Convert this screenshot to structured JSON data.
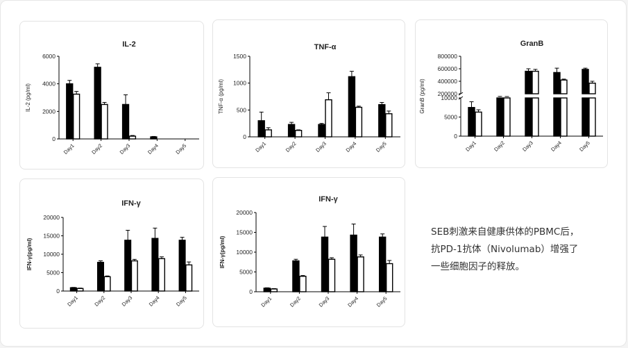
{
  "caption": {
    "lines": [
      "SEB刺激来自健康供体的PBMC后，",
      "抗PD-1抗体（Nivolumab）增强了",
      "一些细胞因子的释放。"
    ]
  },
  "colors": {
    "treated": "#000000",
    "control": "#ffffff",
    "outline": "#000000"
  },
  "chart_data": [
    {
      "type": "bar",
      "title": "IL-2",
      "ylabel": "IL-2 (pg/ml)",
      "categories": [
        "Day1",
        "Day2",
        "Day3",
        "Day4",
        "Day5"
      ],
      "ylim": [
        0,
        6000
      ],
      "yticks": [
        0,
        2000,
        4000,
        6000
      ],
      "series": [
        {
          "values": [
            4000,
            5200,
            2500,
            150,
            0
          ],
          "errors": [
            250,
            250,
            700,
            30,
            0
          ],
          "color": "#000000"
        },
        {
          "values": [
            3250,
            2500,
            200,
            0,
            0
          ],
          "errors": [
            200,
            150,
            50,
            0,
            0
          ],
          "color": "#ffffff"
        }
      ]
    },
    {
      "type": "bar",
      "title": "TNF-α",
      "ylabel": "TNF-α (pg/ml)",
      "categories": [
        "Day1",
        "Day2",
        "Day3",
        "Day4",
        "Day5"
      ],
      "ylim": [
        0,
        1500
      ],
      "yticks": [
        0,
        500,
        1000,
        1500
      ],
      "series": [
        {
          "values": [
            300,
            230,
            230,
            1120,
            600
          ],
          "errors": [
            160,
            40,
            20,
            100,
            40
          ],
          "color": "#000000"
        },
        {
          "values": [
            130,
            120,
            690,
            550,
            430
          ],
          "errors": [
            40,
            10,
            130,
            20,
            50
          ],
          "color": "#ffffff"
        }
      ]
    },
    {
      "type": "bar",
      "title": "GranB",
      "ylabel": "GranB (pg/ml)",
      "categories": [
        "Day1",
        "Day2",
        "Day3",
        "Day4",
        "Day5"
      ],
      "ybreak": {
        "lower": [
          0,
          10000
        ],
        "upper": [
          200000,
          800000
        ]
      },
      "yticks": [
        0,
        5000,
        10000,
        200000,
        400000,
        600000,
        800000
      ],
      "series": [
        {
          "values": [
            7500,
            150000,
            560000,
            540000,
            590000
          ],
          "errors": [
            1500,
            8000,
            40000,
            70000,
            20000
          ],
          "color": "#000000"
        },
        {
          "values": [
            6300,
            150000,
            560000,
            420000,
            370000
          ],
          "errors": [
            600,
            6000,
            30000,
            15000,
            30000
          ],
          "color": "#ffffff"
        }
      ]
    },
    {
      "type": "bar",
      "title": "IFN-γ",
      "ylabel": "IFN-γ(pg/ml)",
      "categories": [
        "Day1",
        "Day2",
        "Day3",
        "Day4",
        "Day5"
      ],
      "ylim": [
        0,
        20000
      ],
      "yticks": [
        0,
        5000,
        10000,
        15000,
        20000
      ],
      "series": [
        {
          "values": [
            900,
            7800,
            13800,
            14300,
            13800
          ],
          "errors": [
            100,
            400,
            2700,
            2800,
            800
          ],
          "color": "#000000"
        },
        {
          "values": [
            700,
            3900,
            8200,
            8800,
            7100
          ],
          "errors": [
            100,
            200,
            400,
            500,
            800
          ],
          "color": "#ffffff"
        }
      ]
    },
    {
      "type": "bar",
      "title": "IFN-γ",
      "ylabel": "IFN-γ(pg/ml)",
      "categories": [
        "Day1",
        "Day2",
        "Day3",
        "Day4",
        "Day5"
      ],
      "ylim": [
        0,
        20000
      ],
      "yticks": [
        0,
        5000,
        10000,
        15000,
        20000
      ],
      "series": [
        {
          "values": [
            900,
            7800,
            13800,
            14300,
            13800
          ],
          "errors": [
            100,
            400,
            2700,
            2800,
            800
          ],
          "color": "#000000"
        },
        {
          "values": [
            700,
            3900,
            8200,
            8800,
            7100
          ],
          "errors": [
            100,
            200,
            400,
            500,
            800
          ],
          "color": "#ffffff"
        }
      ]
    }
  ]
}
